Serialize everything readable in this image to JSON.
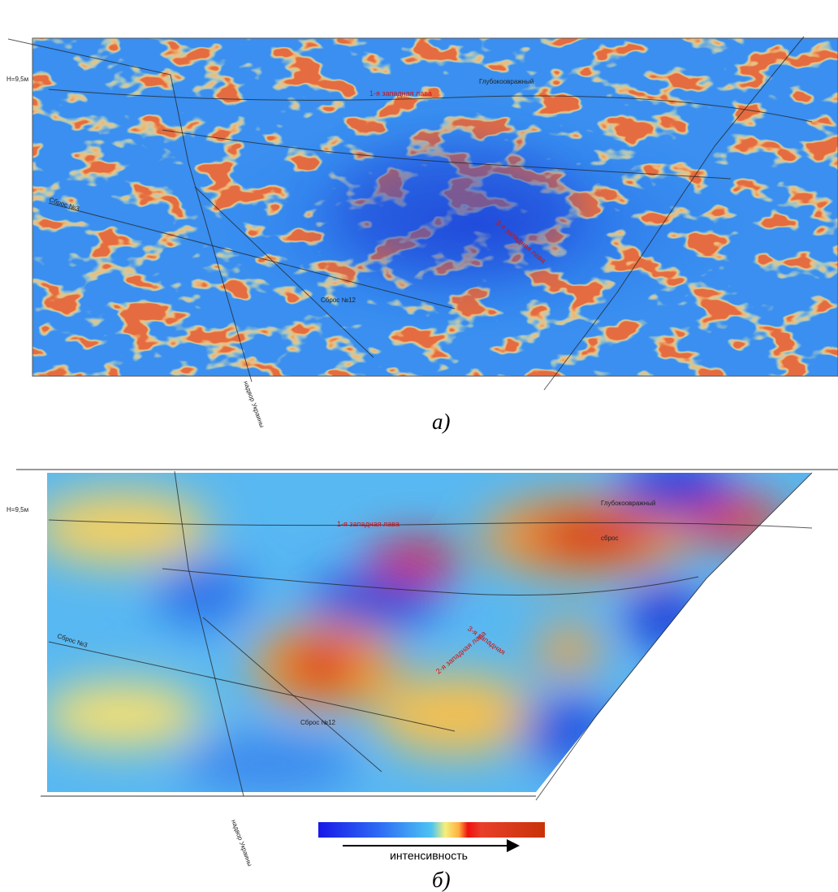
{
  "panel_a": {
    "label": "а)",
    "annotations": [
      "1-я западная лава",
      "Глубокоовражный",
      "3-я западная лава",
      "Сброс №12",
      "Сброс №3",
      "Н=9,5м",
      "надвор Украины"
    ]
  },
  "panel_b": {
    "label": "б)",
    "annotations": [
      "1-я западная лава",
      "Глубокоовражный",
      "2-я западная лава",
      "3-я западная",
      "Сброс №12",
      "сброс",
      "Сброс №3",
      "Н=9,5м",
      "надвор Украины"
    ],
    "colorbar": {
      "label": "интенсивность"
    }
  }
}
